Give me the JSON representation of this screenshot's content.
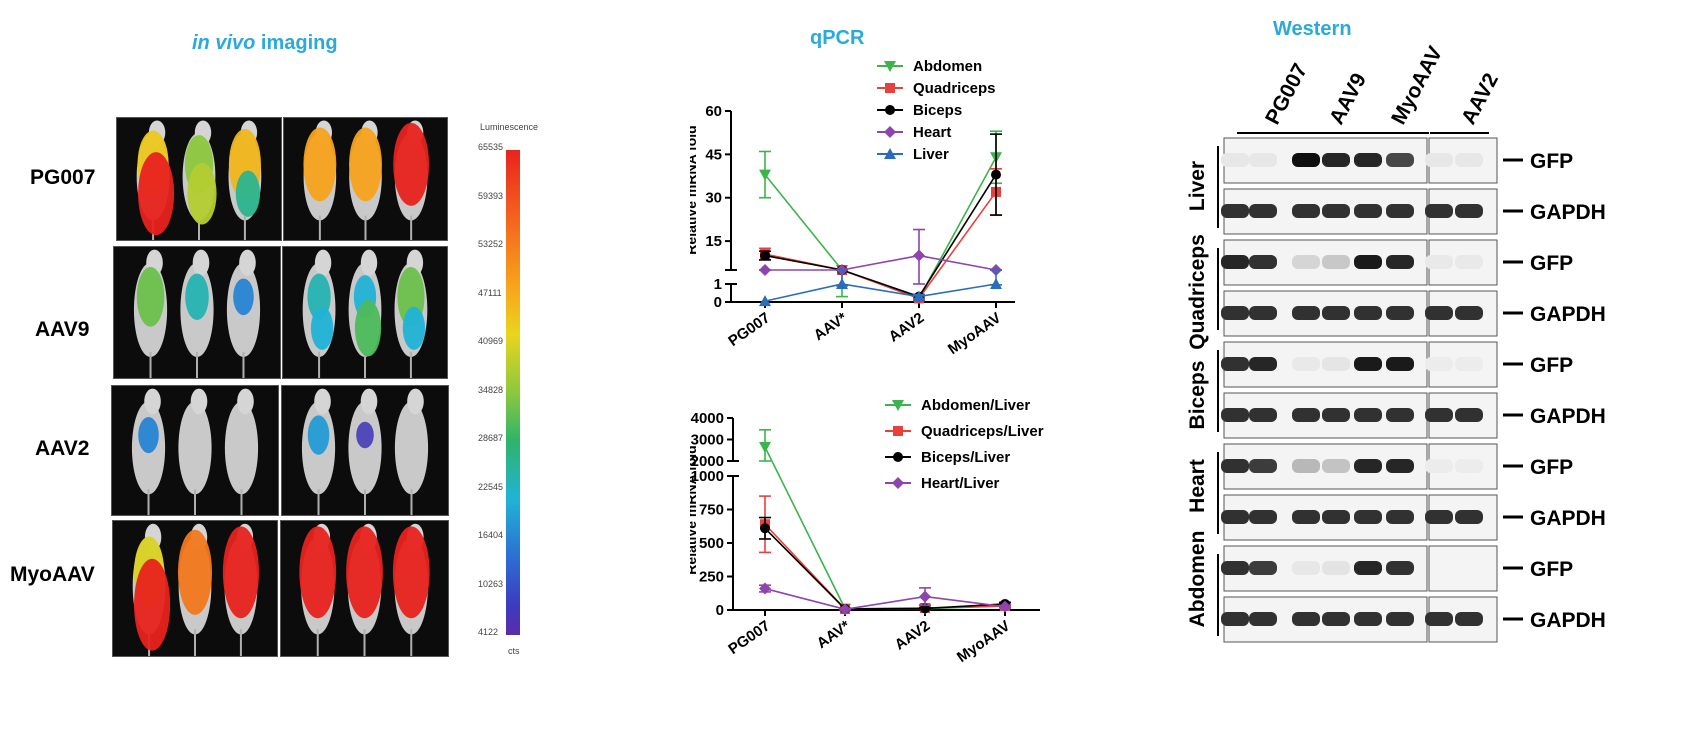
{
  "vivo": {
    "title_em": "in vivo",
    "title_rest": " imaging",
    "rows": [
      "PG007",
      "AAV9",
      "AAV2",
      "MyoAAV"
    ],
    "scale": {
      "title": "Luminescence",
      "ticks": [
        "65535",
        "59393",
        "53252",
        "47111",
        "40969",
        "34828",
        "28687",
        "22545",
        "16404",
        "10263",
        "4122"
      ],
      "unit": "cts"
    },
    "blobs_per_row": [
      [
        [
          0.75,
          0.6,
          0.8,
          1.0,
          0.65,
          0.4
        ],
        [
          0.85,
          0.85,
          1.0
        ]
      ],
      [
        [
          0.55,
          0.35,
          0.2
        ],
        [
          0.35,
          0.3,
          0.55,
          0.3,
          0.5,
          0.3
        ]
      ],
      [
        [
          0.2
        ],
        [
          0.25,
          0.05
        ]
      ],
      [
        [
          0.7,
          0.9,
          1.0,
          1.0
        ],
        [
          1.0,
          1.0,
          1.0
        ]
      ]
    ]
  },
  "qpcr": {
    "title": "qPCR",
    "chart1_ylabel": "Relative mRNA fold",
    "chart2_ylabel": "Relative mRNA fold"
  },
  "western": {
    "title": "Western",
    "lanes": [
      "PG007",
      "AAV9",
      "MyoAAV",
      "AAV2"
    ],
    "tissues": [
      "Liver",
      "Quadriceps",
      "Biceps",
      "Heart",
      "Abdomen"
    ],
    "markers": [
      "GFP",
      "GAPDH"
    ],
    "gfp_intensity": [
      [
        0.04,
        0.04,
        1.0,
        0.9,
        0.9,
        0.75,
        0.04,
        0.04
      ],
      [
        0.9,
        0.85,
        0.12,
        0.18,
        0.95,
        0.9,
        0.03,
        0.03
      ],
      [
        0.85,
        0.9,
        0.03,
        0.05,
        0.95,
        0.95,
        0.02,
        0.02
      ],
      [
        0.85,
        0.8,
        0.25,
        0.2,
        0.9,
        0.9,
        0.02,
        0.02
      ],
      [
        0.85,
        0.8,
        0.04,
        0.06,
        0.9,
        0.85,
        0.0,
        0.0
      ]
    ],
    "gapdh_intensity": 0.85
  },
  "chart_data": [
    {
      "type": "line",
      "title": "qPCR",
      "ylabel": "Relative mRNA fold",
      "categories": [
        "PG007",
        "AAV*",
        "AAV2",
        "MyoAAV"
      ],
      "ylim": [
        0,
        60
      ],
      "axis_break": [
        1,
        5
      ],
      "yticks_upper": [
        15,
        30,
        45,
        60
      ],
      "yticks_lower": [
        0,
        1
      ],
      "legend_position": "top-right",
      "series": [
        {
          "name": "Abdomen",
          "color": "#3cb44b",
          "marker": "triangle-down",
          "values": [
            38,
            1.8,
            0.2,
            44
          ],
          "errors": [
            8,
            1.5,
            0.1,
            9
          ]
        },
        {
          "name": "Quadriceps",
          "color": "#e8413c",
          "marker": "square",
          "values": [
            10.5,
            1.8,
            0.2,
            32
          ],
          "errors": [
            2,
            0.5,
            0.1,
            8
          ]
        },
        {
          "name": "Biceps",
          "color": "#000000",
          "marker": "circle",
          "values": [
            10,
            1.8,
            0.3,
            38
          ],
          "errors": [
            1.5,
            0.5,
            0.1,
            14
          ]
        },
        {
          "name": "Heart",
          "color": "#8e44ad",
          "marker": "diamond",
          "values": [
            3.5,
            1.5,
            10,
            2.2
          ],
          "errors": [
            0.3,
            0.3,
            9,
            0.5
          ]
        },
        {
          "name": "Liver",
          "color": "#2a6ebb",
          "marker": "triangle-up",
          "values": [
            0.05,
            1,
            0.3,
            1
          ],
          "errors": [
            0,
            0.1,
            0.1,
            0.05
          ]
        }
      ]
    },
    {
      "type": "line",
      "ylabel": "Relative mRNA fold",
      "categories": [
        "PG007",
        "AAV*",
        "AAV2",
        "MyoAAV"
      ],
      "ylim": [
        0,
        4000
      ],
      "axis_break": [
        1000,
        2000
      ],
      "yticks_upper": [
        2000,
        3000,
        4000
      ],
      "yticks_lower": [
        0,
        250,
        500,
        750,
        1000
      ],
      "legend_position": "top-right",
      "series": [
        {
          "name": "Abdomen/Liver",
          "color": "#3cb44b",
          "marker": "triangle-down",
          "values": [
            2650,
            10,
            10,
            30
          ],
          "errors": [
            800,
            5,
            5,
            10
          ]
        },
        {
          "name": "Quadriceps/Liver",
          "color": "#e8413c",
          "marker": "square",
          "values": [
            640,
            8,
            15,
            30
          ],
          "errors": [
            210,
            5,
            5,
            10
          ]
        },
        {
          "name": "Biceps/Liver",
          "color": "#000000",
          "marker": "circle",
          "values": [
            610,
            8,
            12,
            45
          ],
          "errors": [
            80,
            5,
            5,
            10
          ]
        },
        {
          "name": "Heart/Liver",
          "color": "#8e44ad",
          "marker": "diamond",
          "values": [
            160,
            5,
            100,
            25
          ],
          "errors": [
            25,
            3,
            65,
            10
          ]
        }
      ]
    }
  ]
}
